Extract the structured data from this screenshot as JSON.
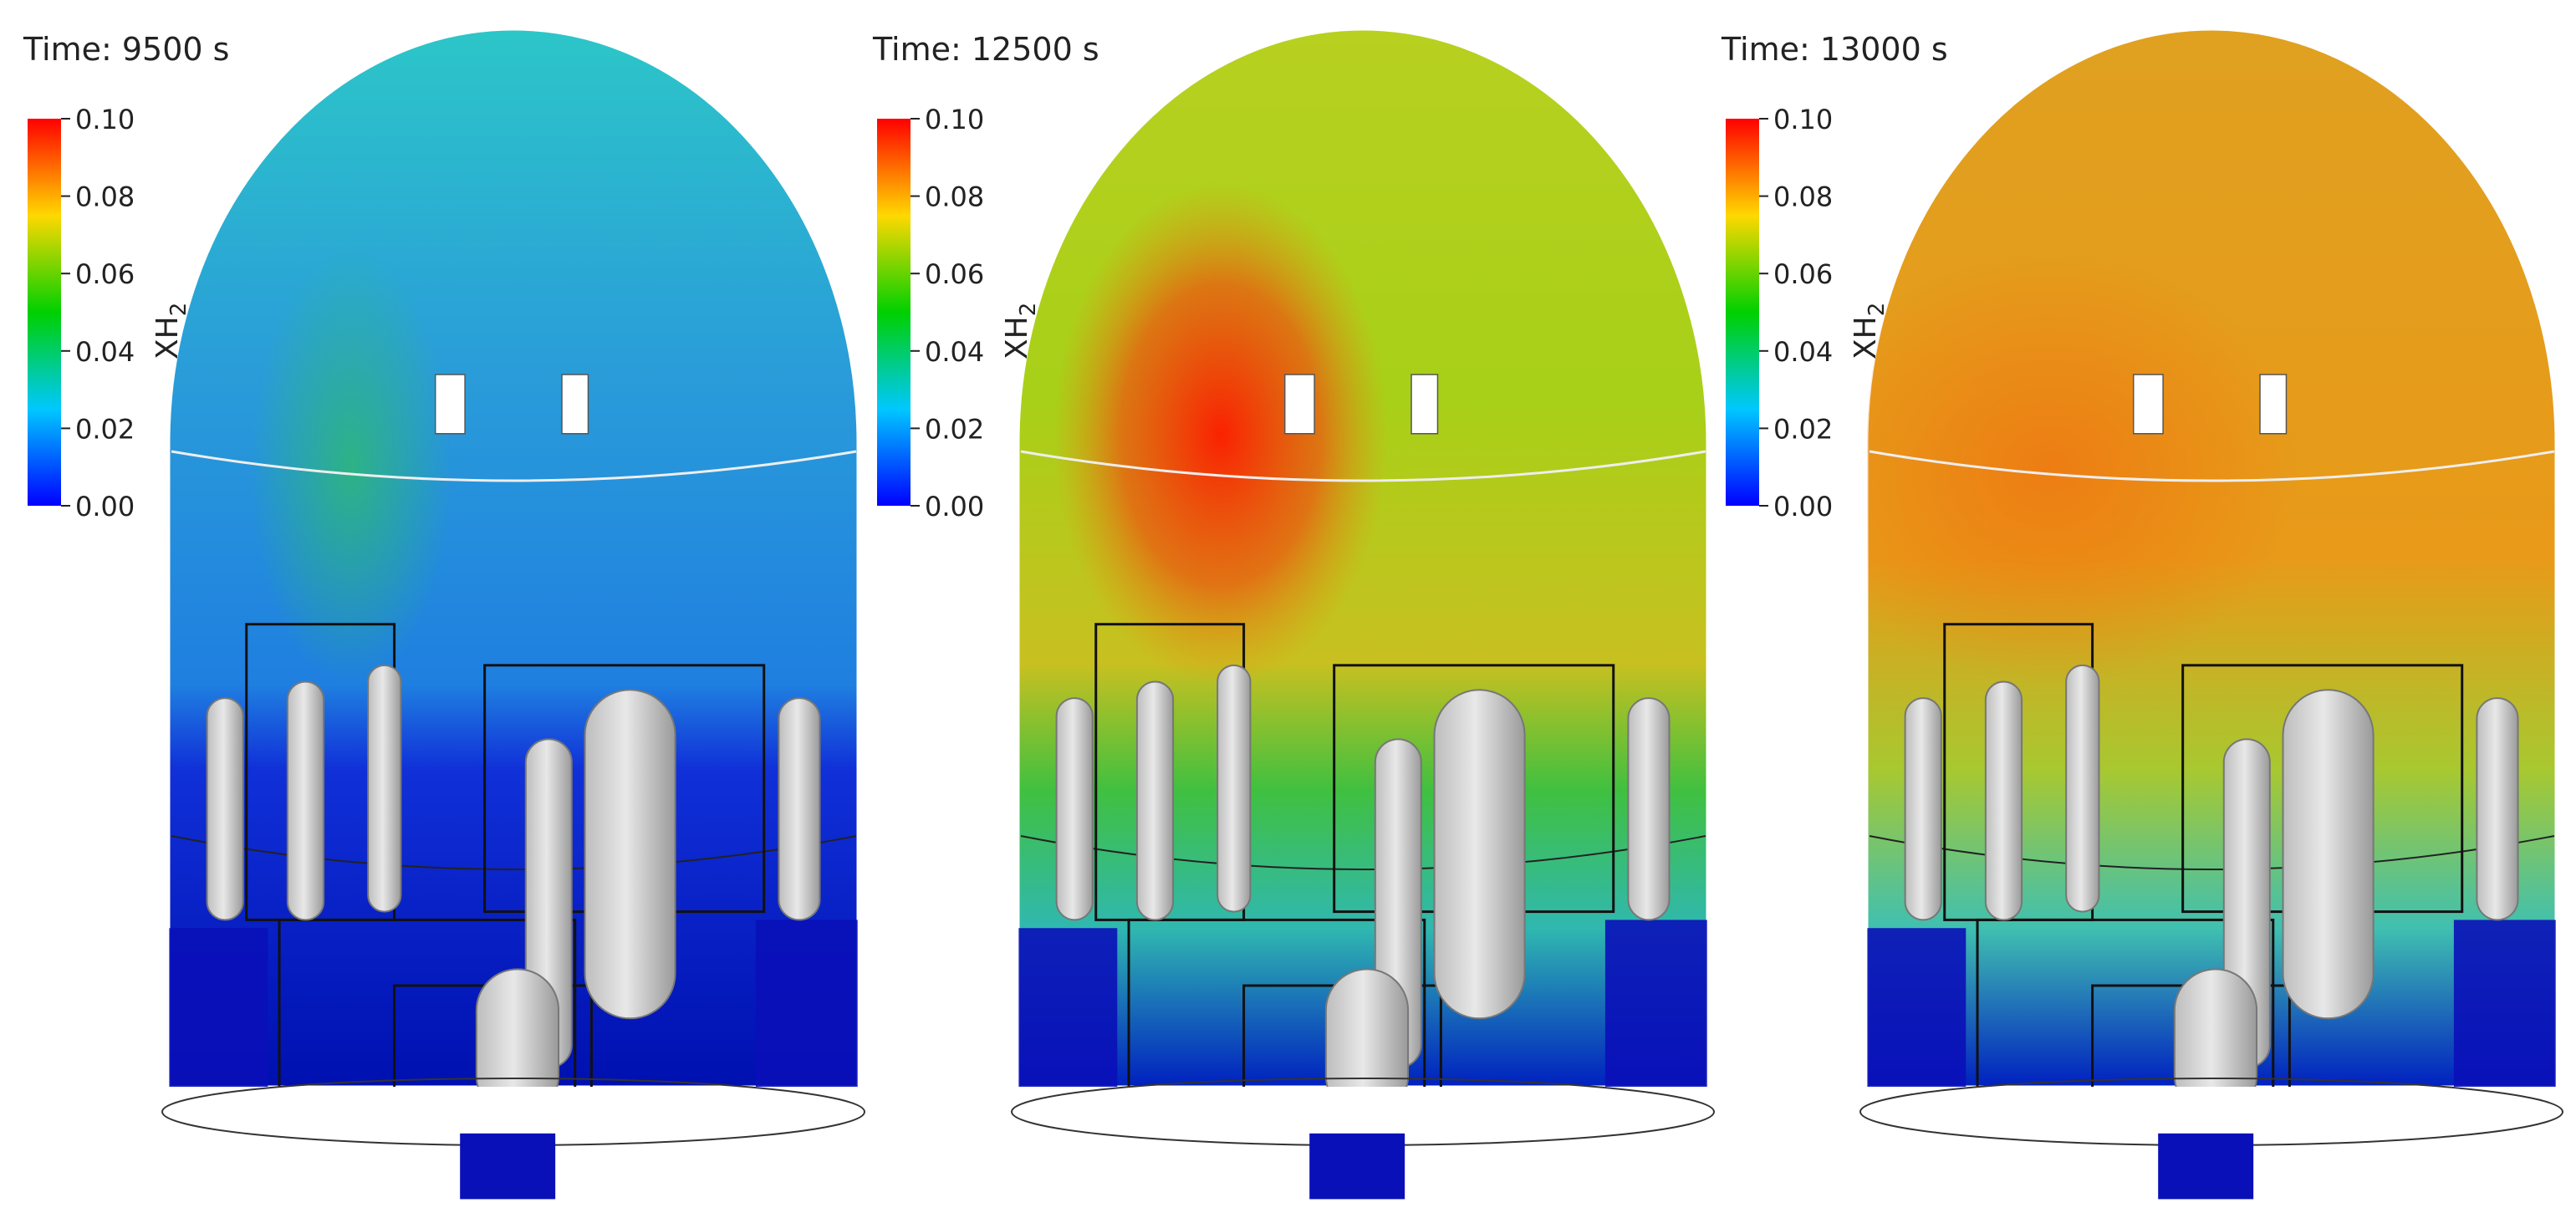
{
  "panels": [
    {
      "time": "Time:  9500 s"
    },
    {
      "time": "Time:  12500 s"
    },
    {
      "time": "Time:  13000 s"
    }
  ],
  "colorbar": {
    "title": "XH",
    "title_subscript": "2",
    "ticks": [
      {
        "value": 0.1,
        "label": "0.10"
      },
      {
        "value": 0.08,
        "label": "0.08"
      },
      {
        "value": 0.06,
        "label": "0.06"
      },
      {
        "value": 0.04,
        "label": "0.04"
      },
      {
        "value": 0.02,
        "label": "0.02"
      },
      {
        "value": 0.0,
        "label": "0.00"
      }
    ],
    "range": [
      0,
      0.1
    ]
  }
}
